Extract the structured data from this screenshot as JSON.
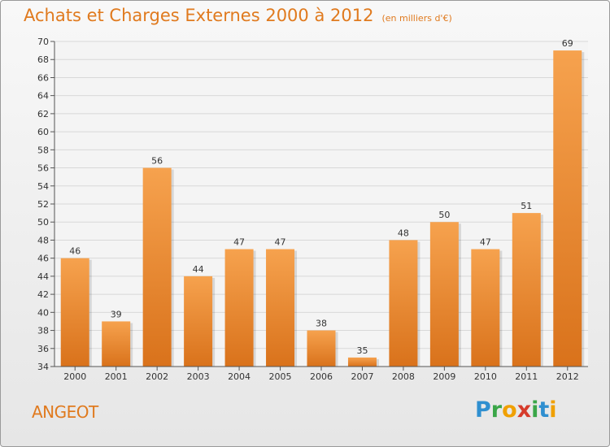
{
  "title": "Achats et Charges Externes 2000 à 2012",
  "unit": "(en milliers d'€)",
  "commune": "ANGEOT",
  "logo": {
    "text": "Proxiti",
    "letters": [
      {
        "ch": "P",
        "color": "#2f8fd0"
      },
      {
        "ch": "r",
        "color": "#3aa648"
      },
      {
        "ch": "o",
        "color": "#f0a000"
      },
      {
        "ch": "x",
        "color": "#d63b2b"
      },
      {
        "ch": "i",
        "color": "#3aa648"
      },
      {
        "ch": "t",
        "color": "#2f8fd0"
      },
      {
        "ch": "i",
        "color": "#f0a000"
      }
    ]
  },
  "colors": {
    "title": "#e07a1e",
    "bar_top": "#f6a24e",
    "bar_bottom": "#d9721b",
    "grid": "#d8d8d8"
  },
  "chart_data": {
    "type": "bar",
    "title": "Achats et Charges Externes 2000 à 2012",
    "subtitle": "(en milliers d'€)",
    "categories": [
      "2000",
      "2001",
      "2002",
      "2003",
      "2004",
      "2005",
      "2006",
      "2007",
      "2008",
      "2009",
      "2010",
      "2011",
      "2012"
    ],
    "values": [
      46,
      39,
      56,
      44,
      47,
      47,
      38,
      35,
      48,
      50,
      47,
      51,
      69
    ],
    "ylim": [
      34,
      70
    ],
    "yticks": [
      34,
      36,
      38,
      40,
      42,
      44,
      46,
      48,
      50,
      52,
      54,
      56,
      58,
      60,
      62,
      64,
      66,
      68,
      70
    ],
    "grid": true
  }
}
